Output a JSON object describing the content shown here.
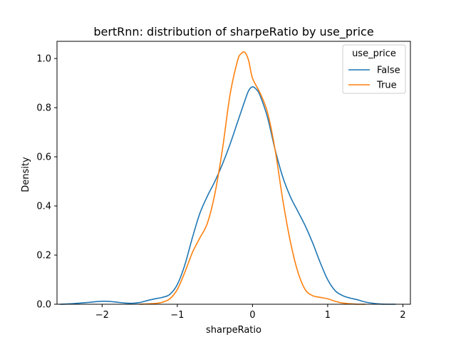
{
  "chart_data": {
    "type": "line",
    "title": "bertRnn: distribution of sharpeRatio by use_price",
    "xlabel": "sharpeRatio",
    "ylabel": "Density",
    "xlim": [
      -2.6,
      2.1
    ],
    "ylim": [
      0,
      1.07
    ],
    "xticks": [
      -2,
      -1,
      0,
      1,
      2
    ],
    "yticks": [
      0.0,
      0.2,
      0.4,
      0.6,
      0.8,
      1.0
    ],
    "xtick_labels": [
      "−2",
      "−1",
      "0",
      "1",
      "2"
    ],
    "ytick_labels": [
      "0.0",
      "0.2",
      "0.4",
      "0.6",
      "0.8",
      "1.0"
    ],
    "grid": false,
    "legend": {
      "title": "use_price",
      "placement": "top-right"
    },
    "series": [
      {
        "name": "False",
        "color": "#1f77b4",
        "x": [
          -2.56,
          -2.4,
          -2.2,
          -2.0,
          -1.85,
          -1.7,
          -1.6,
          -1.5,
          -1.4,
          -1.3,
          -1.2,
          -1.1,
          -1.0,
          -0.9,
          -0.8,
          -0.7,
          -0.6,
          -0.5,
          -0.4,
          -0.3,
          -0.2,
          -0.1,
          -0.05,
          0.0,
          0.05,
          0.1,
          0.2,
          0.3,
          0.4,
          0.5,
          0.6,
          0.7,
          0.8,
          0.9,
          1.0,
          1.1,
          1.2,
          1.3,
          1.4,
          1.5,
          1.6,
          1.7,
          1.8,
          1.9
        ],
        "y": [
          0.0,
          0.002,
          0.007,
          0.012,
          0.01,
          0.005,
          0.004,
          0.007,
          0.015,
          0.022,
          0.028,
          0.04,
          0.08,
          0.16,
          0.27,
          0.37,
          0.44,
          0.5,
          0.57,
          0.65,
          0.74,
          0.83,
          0.87,
          0.885,
          0.875,
          0.85,
          0.76,
          0.63,
          0.52,
          0.44,
          0.38,
          0.32,
          0.25,
          0.17,
          0.1,
          0.055,
          0.035,
          0.025,
          0.018,
          0.009,
          0.004,
          0.001,
          0.0,
          0.0
        ]
      },
      {
        "name": "True",
        "color": "#ff7f0e",
        "x": [
          -1.5,
          -1.3,
          -1.2,
          -1.1,
          -1.0,
          -0.9,
          -0.8,
          -0.7,
          -0.6,
          -0.5,
          -0.4,
          -0.3,
          -0.2,
          -0.15,
          -0.1,
          -0.05,
          0.0,
          0.1,
          0.2,
          0.3,
          0.4,
          0.5,
          0.6,
          0.7,
          0.8,
          0.9,
          1.0,
          1.1,
          1.2,
          1.3,
          1.4,
          1.5
        ],
        "y": [
          0.0,
          0.003,
          0.008,
          0.022,
          0.06,
          0.13,
          0.21,
          0.27,
          0.33,
          0.45,
          0.63,
          0.85,
          0.99,
          1.02,
          1.025,
          0.99,
          0.92,
          0.86,
          0.78,
          0.63,
          0.43,
          0.26,
          0.135,
          0.06,
          0.035,
          0.028,
          0.022,
          0.012,
          0.005,
          0.002,
          0.0,
          0.0
        ]
      }
    ]
  }
}
